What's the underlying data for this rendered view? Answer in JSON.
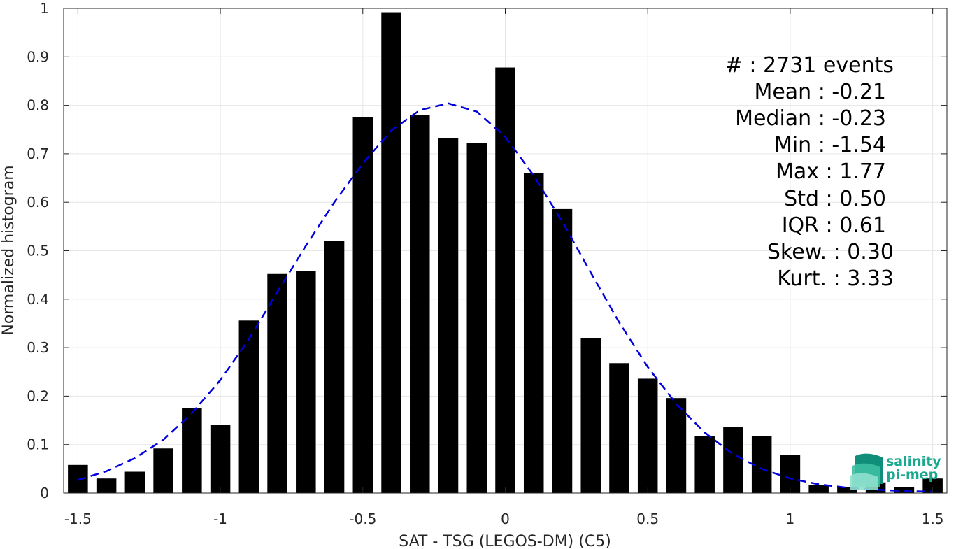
{
  "chart_data": {
    "type": "bar",
    "xlabel": "SAT - TSG (LEGOS-DM) (C5)",
    "ylabel": "Normalized histogram",
    "xlim": [
      -1.55,
      1.55
    ],
    "ylim": [
      0,
      1
    ],
    "grid": true,
    "xticks": [
      -1.5,
      -1,
      -0.5,
      0,
      0.5,
      1,
      1.5
    ],
    "xtick_labels": [
      "-1.5",
      "-1",
      "-0.5",
      "0",
      "0.5",
      "1",
      "1.5"
    ],
    "yticks": [
      0,
      0.1,
      0.2,
      0.3,
      0.4,
      0.5,
      0.6,
      0.7,
      0.8,
      0.9,
      1
    ],
    "ytick_labels": [
      "0",
      "0.1",
      "0.2",
      "0.3",
      "0.4",
      "0.5",
      "0.6",
      "0.7",
      "0.8",
      "0.9",
      "1"
    ],
    "bar_width": 0.07,
    "bar_color": "#000000",
    "bins": [
      {
        "x": -1.5,
        "y": 0.058
      },
      {
        "x": -1.4,
        "y": 0.03
      },
      {
        "x": -1.3,
        "y": 0.044
      },
      {
        "x": -1.2,
        "y": 0.092
      },
      {
        "x": -1.1,
        "y": 0.176
      },
      {
        "x": -1.0,
        "y": 0.14
      },
      {
        "x": -0.9,
        "y": 0.356
      },
      {
        "x": -0.8,
        "y": 0.452
      },
      {
        "x": -0.7,
        "y": 0.458
      },
      {
        "x": -0.6,
        "y": 0.52
      },
      {
        "x": -0.5,
        "y": 0.776
      },
      {
        "x": -0.4,
        "y": 0.992
      },
      {
        "x": -0.3,
        "y": 0.78
      },
      {
        "x": -0.2,
        "y": 0.732
      },
      {
        "x": -0.1,
        "y": 0.722
      },
      {
        "x": 0.0,
        "y": 0.878
      },
      {
        "x": 0.1,
        "y": 0.66
      },
      {
        "x": 0.2,
        "y": 0.586
      },
      {
        "x": 0.3,
        "y": 0.32
      },
      {
        "x": 0.4,
        "y": 0.268
      },
      {
        "x": 0.5,
        "y": 0.236
      },
      {
        "x": 0.6,
        "y": 0.196
      },
      {
        "x": 0.7,
        "y": 0.118
      },
      {
        "x": 0.8,
        "y": 0.136
      },
      {
        "x": 0.9,
        "y": 0.118
      },
      {
        "x": 1.0,
        "y": 0.078
      },
      {
        "x": 1.1,
        "y": 0.016
      },
      {
        "x": 1.2,
        "y": 0.012
      },
      {
        "x": 1.3,
        "y": 0.022
      },
      {
        "x": 1.4,
        "y": 0.012
      },
      {
        "x": 1.5,
        "y": 0.03
      }
    ],
    "fit_curve": {
      "color": "#0000dd",
      "style": "dashed",
      "points": [
        [
          -1.5,
          0.027
        ],
        [
          -1.4,
          0.045
        ],
        [
          -1.3,
          0.072
        ],
        [
          -1.2,
          0.11
        ],
        [
          -1.1,
          0.165
        ],
        [
          -1.0,
          0.233
        ],
        [
          -0.9,
          0.317
        ],
        [
          -0.8,
          0.415
        ],
        [
          -0.7,
          0.51
        ],
        [
          -0.6,
          0.6
        ],
        [
          -0.5,
          0.68
        ],
        [
          -0.4,
          0.748
        ],
        [
          -0.3,
          0.79
        ],
        [
          -0.2,
          0.804
        ],
        [
          -0.1,
          0.787
        ],
        [
          0.0,
          0.735
        ],
        [
          0.1,
          0.655
        ],
        [
          0.2,
          0.56
        ],
        [
          0.3,
          0.455
        ],
        [
          0.4,
          0.352
        ],
        [
          0.5,
          0.26
        ],
        [
          0.6,
          0.184
        ],
        [
          0.7,
          0.125
        ],
        [
          0.8,
          0.08
        ],
        [
          0.9,
          0.05
        ],
        [
          1.0,
          0.03
        ],
        [
          1.1,
          0.018
        ],
        [
          1.2,
          0.011
        ],
        [
          1.3,
          0.007
        ],
        [
          1.4,
          0.004
        ],
        [
          1.5,
          0.003
        ]
      ]
    },
    "annotations": [
      "#  : 2731 events",
      "Mean : -0.21",
      "Median : -0.23",
      "Min : -1.54",
      "Max : 1.77",
      "Std : 0.50",
      "IQR : 0.61",
      "Skew. : 0.30",
      "Kurt. : 3.33"
    ]
  },
  "logo": {
    "line1": "salinity",
    "line2": "pi-mep",
    "color": "#1aa88f"
  }
}
